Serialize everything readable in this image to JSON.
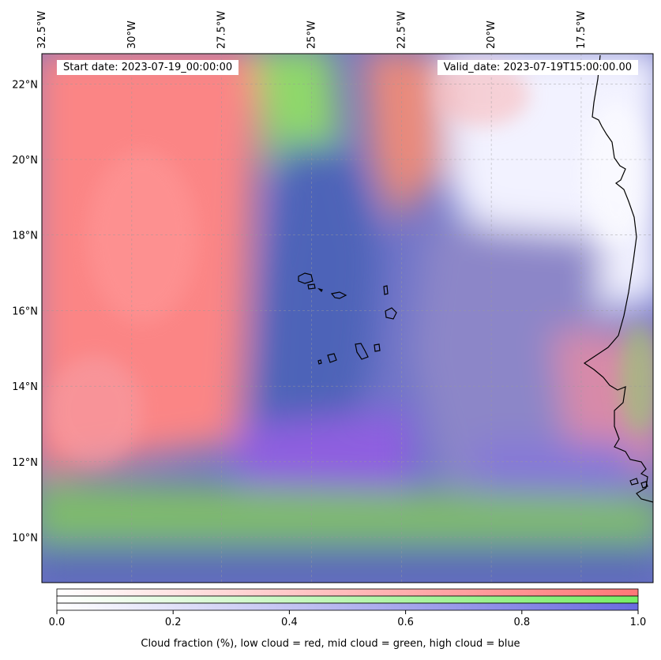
{
  "annotations": {
    "start_date": "Start date: 2023-07-19_00:00:00",
    "valid_date": "Valid_date: 2023-07-19T15:00:00.00"
  },
  "map": {
    "lon_range_deg": [
      -32.5,
      -15.5
    ],
    "lat_range_deg": [
      8.8,
      22.8
    ],
    "lon_ticks": [
      {
        "value": -32.5,
        "label": "32.5°W"
      },
      {
        "value": -30.0,
        "label": "30°W"
      },
      {
        "value": -27.5,
        "label": "27.5°W"
      },
      {
        "value": -25.0,
        "label": "25°W"
      },
      {
        "value": -22.5,
        "label": "22.5°W"
      },
      {
        "value": -20.0,
        "label": "20°W"
      },
      {
        "value": -17.5,
        "label": "17.5°W"
      }
    ],
    "lat_ticks": [
      {
        "value": 22,
        "label": "22°N"
      },
      {
        "value": 20,
        "label": "20°N"
      },
      {
        "value": 18,
        "label": "18°N"
      },
      {
        "value": 16,
        "label": "16°N"
      },
      {
        "value": 14,
        "label": "14°N"
      },
      {
        "value": 12,
        "label": "12°N"
      },
      {
        "value": 10,
        "label": "10°N"
      }
    ],
    "layers": {
      "low_cloud": "red",
      "mid_cloud": "green",
      "high_cloud": "blue"
    },
    "colors": {
      "low": "#ff7777",
      "mid": "#77ee66",
      "high": "#6a6ae0",
      "coast": "#000000"
    }
  },
  "colorbar": {
    "ticks": [
      {
        "value": 0.0,
        "label": "0.0"
      },
      {
        "value": 0.2,
        "label": "0.2"
      },
      {
        "value": 0.4,
        "label": "0.4"
      },
      {
        "value": 0.6,
        "label": "0.6"
      },
      {
        "value": 0.8,
        "label": "0.8"
      },
      {
        "value": 1.0,
        "label": "1.0"
      }
    ],
    "label": "Cloud fraction (%), low cloud = red, mid cloud = green, high cloud = blue"
  }
}
